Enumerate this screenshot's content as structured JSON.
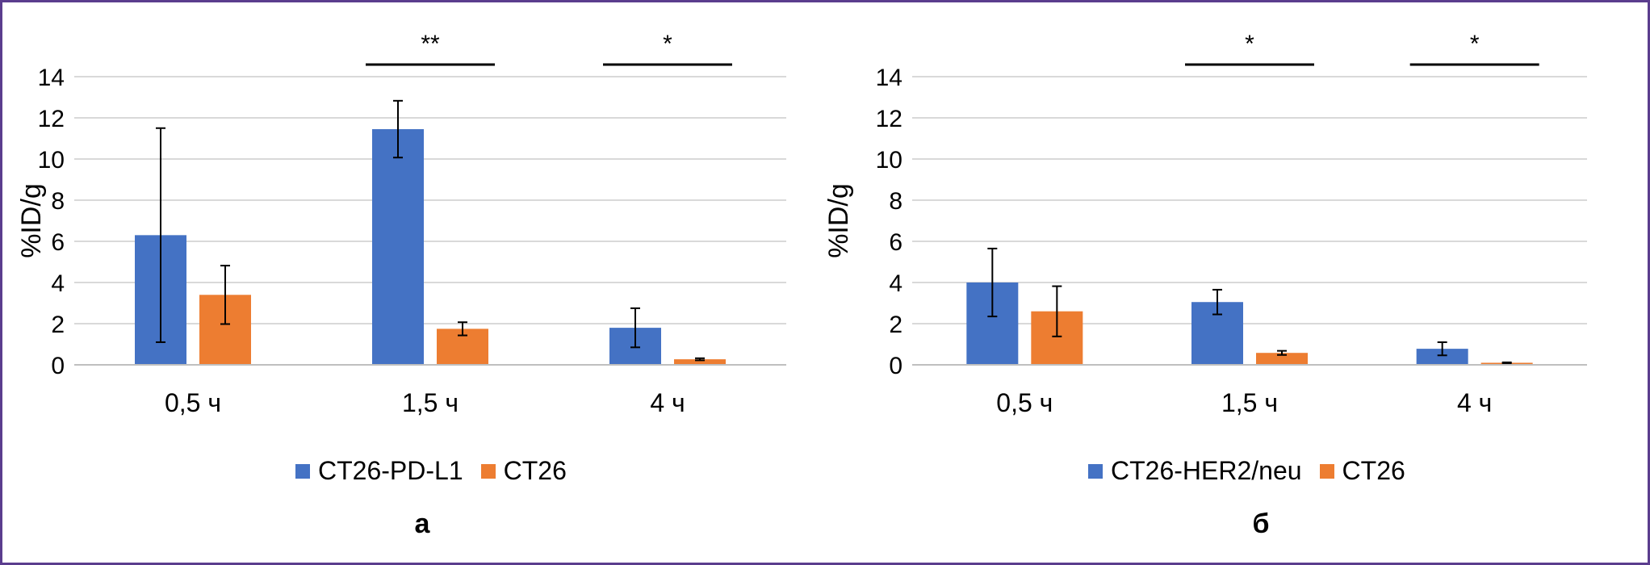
{
  "colors": {
    "blue": "#4472c4",
    "orange": "#ed7d31",
    "grid": "#d9d9d9",
    "frame": "#5b3d8e"
  },
  "chart_data": [
    {
      "type": "bar",
      "panel_label": "а",
      "ylabel": "%ID/g",
      "ylim": [
        0,
        14
      ],
      "yticks": [
        "0",
        "2",
        "4",
        "6",
        "8",
        "10",
        "12",
        "14"
      ],
      "categories": [
        "0,5 ч",
        "1,5 ч",
        "4 ч"
      ],
      "series": [
        {
          "name": "CT26-PD-L1",
          "color": "#4472c4",
          "values": [
            6.3,
            11.45,
            1.8
          ],
          "errors": [
            5.2,
            1.38,
            0.95
          ]
        },
        {
          "name": "CT26",
          "color": "#ed7d31",
          "values": [
            3.4,
            1.75,
            0.27
          ],
          "errors": [
            1.42,
            0.32,
            0.05
          ]
        }
      ],
      "significance": [
        "",
        "**",
        "*"
      ],
      "grid": true,
      "legend": "bottom"
    },
    {
      "type": "bar",
      "panel_label": "б",
      "ylabel": "%ID/g",
      "ylim": [
        0,
        14
      ],
      "yticks": [
        "0",
        "2",
        "4",
        "6",
        "8",
        "10",
        "12",
        "14"
      ],
      "categories": [
        "0,5 ч",
        "1,5 ч",
        "4 ч"
      ],
      "series": [
        {
          "name": "CT26-HER2/neu",
          "color": "#4472c4",
          "values": [
            4.0,
            3.05,
            0.78
          ],
          "errors": [
            1.65,
            0.6,
            0.32
          ]
        },
        {
          "name": "CT26",
          "color": "#ed7d31",
          "values": [
            2.6,
            0.58,
            0.1
          ],
          "errors": [
            1.22,
            0.1,
            0.02
          ]
        }
      ],
      "significance": [
        "",
        "*",
        "*"
      ],
      "grid": true,
      "legend": "bottom"
    }
  ]
}
